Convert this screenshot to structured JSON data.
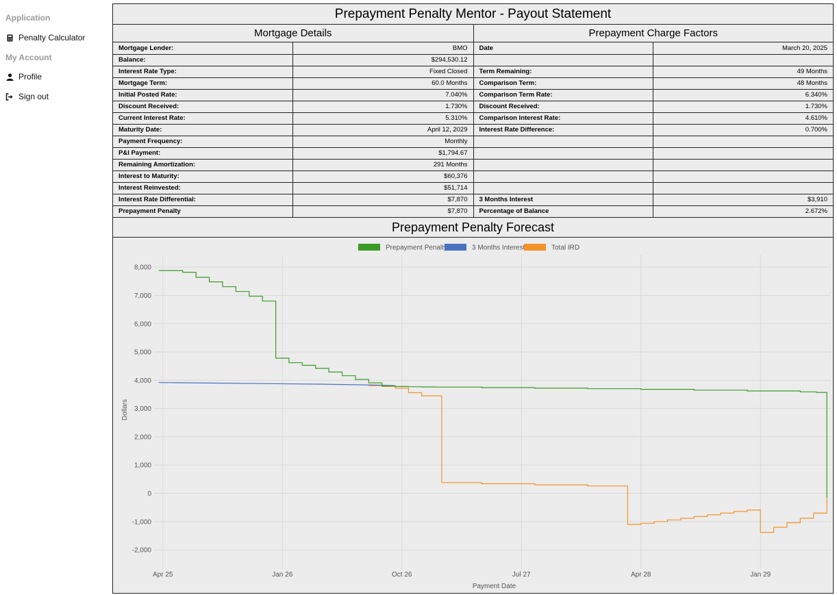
{
  "sidebar": {
    "application_heading": "Application",
    "account_heading": "My Account",
    "items": [
      {
        "label": "Penalty Calculator",
        "icon": "calculator-icon"
      },
      {
        "label": "Profile",
        "icon": "user-icon"
      },
      {
        "label": "Sign out",
        "icon": "sign-out-icon"
      }
    ]
  },
  "report": {
    "title": "Prepayment Penalty Mentor - Payout Statement",
    "mortgage_details": {
      "title": "Mortgage Details",
      "rows": [
        {
          "label": "Mortgage Lender:",
          "value": "BMO"
        },
        {
          "label": "Balance:",
          "value": "$294,530.12"
        },
        {
          "label": "Interest Rate Type:",
          "value": "Fixed Closed"
        },
        {
          "label": "Mortgage Term:",
          "value": "60.0 Months"
        },
        {
          "label": "Initial Posted Rate:",
          "value": "7.040%"
        },
        {
          "label": "Discount Received:",
          "value": "1.730%"
        },
        {
          "label": "Current Interest Rate:",
          "value": "5.310%"
        },
        {
          "label": "Maturity Date:",
          "value": "April 12, 2029"
        },
        {
          "label": "Payment Frequency:",
          "value": "Monthly"
        },
        {
          "label": "P&I Payment:",
          "value": "$1,794.67"
        },
        {
          "label": "Remaining Amortization:",
          "value": "291 Months"
        },
        {
          "label": "Interest to Maturity:",
          "value": "$60,376"
        },
        {
          "label": "Interest Reinvested:",
          "value": "$51,714"
        },
        {
          "label": "Interest Rate Differential:",
          "value": "$7,870"
        },
        {
          "label": "Prepayment Penalty",
          "value": "$7,870"
        }
      ]
    },
    "charge_factors": {
      "title": "Prepayment Charge Factors",
      "rows": [
        {
          "label": "Date",
          "value": "March 20, 2025"
        },
        {
          "label": "",
          "value": ""
        },
        {
          "label": "Term Remaining:",
          "value": "49 Months"
        },
        {
          "label": "Comparison Term:",
          "value": "48 Months"
        },
        {
          "label": "Comparison Term Rate:",
          "value": "6.340%"
        },
        {
          "label": "Discount Received:",
          "value": "1.730%"
        },
        {
          "label": "Comparison Interest Rate:",
          "value": "4.610%"
        },
        {
          "label": "Interest Rate Difference:",
          "value": "0.700%"
        },
        {
          "label": "",
          "value": ""
        },
        {
          "label": "",
          "value": ""
        },
        {
          "label": "",
          "value": ""
        },
        {
          "label": "",
          "value": ""
        },
        {
          "label": "",
          "value": ""
        },
        {
          "label": "3 Months Interest",
          "value": "$3,910"
        },
        {
          "label": "Percentage of Balance",
          "value": "2.672%"
        }
      ]
    },
    "forecast_title": "Prepayment Penalty Forecast"
  },
  "chart_data": {
    "type": "line",
    "xlabel": "Payment Date",
    "ylabel": "Dollars",
    "ylim": [
      -2000,
      8000
    ],
    "xlim_months": [
      -0.4,
      50.3
    ],
    "x_ticks": [
      "Apr 25",
      "Jan 26",
      "Oct 26",
      "Jul 27",
      "Apr 28",
      "Jan 29"
    ],
    "y_ticks": [
      "8,000",
      "7,000",
      "6,000",
      "5,000",
      "4,000",
      "3,000",
      "2,000",
      "1,000",
      "0",
      "-1,000",
      "-2,000"
    ],
    "legend_position": "top",
    "grid": true,
    "series": [
      {
        "name": "Prepayment Penalty",
        "color": "#3a9a26",
        "step": true,
        "points": [
          [
            -0.3,
            7880
          ],
          [
            0.5,
            7880
          ],
          [
            1.5,
            7820
          ],
          [
            2.5,
            7640
          ],
          [
            3.5,
            7480
          ],
          [
            4.5,
            7310
          ],
          [
            5.5,
            7140
          ],
          [
            6.5,
            6970
          ],
          [
            7.5,
            6800
          ],
          [
            8.5,
            4780
          ],
          [
            9.5,
            4620
          ],
          [
            10.5,
            4530
          ],
          [
            11.5,
            4420
          ],
          [
            12.5,
            4290
          ],
          [
            13.5,
            4160
          ],
          [
            14.5,
            4030
          ],
          [
            15.5,
            3910
          ],
          [
            16.5,
            3800
          ],
          [
            17.5,
            3780
          ],
          [
            18.5,
            3770
          ],
          [
            19.5,
            3765
          ],
          [
            20.5,
            3760
          ],
          [
            24,
            3740
          ],
          [
            28,
            3720
          ],
          [
            32,
            3700
          ],
          [
            36,
            3680
          ],
          [
            40,
            3650
          ],
          [
            44,
            3620
          ],
          [
            48,
            3590
          ],
          [
            49.2,
            3570
          ],
          [
            50,
            3560
          ],
          [
            50,
            -150
          ]
        ]
      },
      {
        "name": "3 Months Interest",
        "color": "#4a72c0",
        "step": false,
        "points": [
          [
            -0.3,
            3920
          ],
          [
            4,
            3900
          ],
          [
            8,
            3880
          ],
          [
            12,
            3860
          ],
          [
            16,
            3830
          ],
          [
            17.5,
            3810
          ]
        ]
      },
      {
        "name": "Total IRD",
        "color": "#f29329",
        "step": true,
        "points": [
          [
            15.5,
            3810
          ],
          [
            16.5,
            3780
          ],
          [
            17.5,
            3720
          ],
          [
            18.5,
            3560
          ],
          [
            19.5,
            3450
          ],
          [
            21,
            380
          ],
          [
            24,
            340
          ],
          [
            28,
            300
          ],
          [
            32,
            260
          ],
          [
            35,
            240
          ],
          [
            35,
            -1100
          ],
          [
            36,
            -1060
          ],
          [
            37,
            -1000
          ],
          [
            38,
            -940
          ],
          [
            39,
            -880
          ],
          [
            40,
            -820
          ],
          [
            41,
            -760
          ],
          [
            42,
            -700
          ],
          [
            43,
            -640
          ],
          [
            44,
            -590
          ],
          [
            45,
            -1380
          ],
          [
            46,
            -1200
          ],
          [
            47,
            -1040
          ],
          [
            48,
            -880
          ],
          [
            49,
            -700
          ],
          [
            50,
            -550
          ],
          [
            50,
            -150
          ]
        ]
      }
    ]
  }
}
